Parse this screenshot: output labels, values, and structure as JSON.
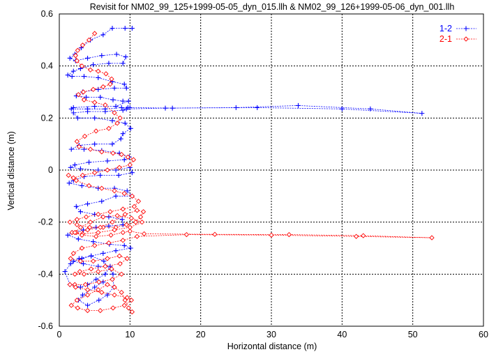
{
  "chart_data": {
    "type": "line",
    "title": "Revisit for NM02_99_125+1999-05-05_dyn_015.llh & NM02_99_126+1999-05-06_dyn_001.llh",
    "xlabel": "Horizontal distance (m)",
    "ylabel": "Vertical distance (m)",
    "xlim": [
      0,
      60
    ],
    "ylim": [
      -0.6,
      0.6
    ],
    "xticks": [
      0,
      10,
      20,
      30,
      40,
      50,
      60
    ],
    "yticks": [
      -0.6,
      -0.4,
      -0.2,
      0,
      0.2,
      0.4,
      0.6
    ],
    "xtick_labels": [
      "0",
      "10",
      "20",
      "30",
      "40",
      "50",
      "60"
    ],
    "ytick_labels": [
      "-0.6",
      "-0.4",
      "-0.2",
      "0",
      "0.2",
      "0.4",
      "0.6"
    ],
    "grid": true,
    "legend_position": "top-right",
    "series": [
      {
        "name": "1-2",
        "color": "#0000ff",
        "marker": "plus",
        "x": [
          9.3,
          10.3,
          7.5,
          6.2,
          4.4,
          3.1,
          2.2,
          1.5,
          2.3,
          4.0,
          6.0,
          8.1,
          9.4,
          9.0,
          7.0,
          4.8,
          3.0,
          2.0,
          1.2,
          1.8,
          3.5,
          5.5,
          7.5,
          9.2,
          9.5,
          7.8,
          5.5,
          3.3,
          2.4,
          3.8,
          5.8,
          7.6,
          9.0,
          9.8,
          8.0,
          5.0,
          2.0,
          1.7,
          4.0,
          6.5,
          8.8,
          9.7,
          10.0,
          16.0,
          25.0,
          33.8,
          44.0,
          51.3,
          40.0,
          28.0,
          15.0,
          9.5,
          9.0,
          6.5,
          4.0,
          2.0,
          2.6,
          5.0,
          7.5,
          9.3,
          10.1,
          9.0,
          8.7,
          7.5,
          5.0,
          2.8,
          1.7,
          3.5,
          6.0,
          8.5,
          9.9,
          9.2,
          6.8,
          4.2,
          2.2,
          1.6,
          3.0,
          5.5,
          8.0,
          10.0,
          10.3,
          8.4,
          5.8,
          3.5,
          2.0,
          1.4,
          3.2,
          5.5,
          7.8,
          9.6,
          10.3,
          8.0,
          6.0,
          4.0,
          2.4,
          3.0,
          5.0,
          7.0,
          8.9,
          9.0,
          7.0,
          5.2,
          3.4,
          1.8,
          1.2,
          2.7,
          4.8,
          7.1,
          9.2,
          10.1,
          8.0,
          6.2,
          4.5,
          3.2,
          2.0,
          3.4,
          5.5,
          7.2,
          6.5,
          5.2,
          4.0,
          3.0,
          1.5,
          0.8,
          1.6,
          2.8,
          4.5,
          6.3,
          7.6,
          7.7,
          6.8,
          5.6,
          4.0,
          2.7,
          3.3,
          5.0,
          6.2
        ],
        "y": [
          0.545,
          0.545,
          0.545,
          0.52,
          0.5,
          0.47,
          0.445,
          0.43,
          0.42,
          0.43,
          0.44,
          0.445,
          0.435,
          0.41,
          0.41,
          0.405,
          0.39,
          0.38,
          0.365,
          0.36,
          0.36,
          0.355,
          0.34,
          0.33,
          0.315,
          0.315,
          0.31,
          0.3,
          0.285,
          0.28,
          0.28,
          0.27,
          0.265,
          0.265,
          0.245,
          0.245,
          0.24,
          0.235,
          0.235,
          0.235,
          0.24,
          0.24,
          0.24,
          0.238,
          0.24,
          0.248,
          0.235,
          0.218,
          0.235,
          0.24,
          0.238,
          0.235,
          0.23,
          0.225,
          0.225,
          0.22,
          0.2,
          0.2,
          0.19,
          0.18,
          0.16,
          0.14,
          0.12,
          0.1,
          0.1,
          0.095,
          0.08,
          0.08,
          0.075,
          0.065,
          0.05,
          0.04,
          0.035,
          0.03,
          0.02,
          0.01,
          0.005,
          0.0,
          0.0,
          0.01,
          -0.01,
          -0.02,
          -0.02,
          -0.025,
          -0.04,
          -0.05,
          -0.06,
          -0.07,
          -0.07,
          -0.08,
          -0.1,
          -0.1,
          -0.12,
          -0.13,
          -0.14,
          -0.16,
          -0.17,
          -0.18,
          -0.19,
          -0.21,
          -0.215,
          -0.22,
          -0.23,
          -0.24,
          -0.25,
          -0.265,
          -0.275,
          -0.285,
          -0.29,
          -0.3,
          -0.31,
          -0.32,
          -0.33,
          -0.34,
          -0.35,
          -0.36,
          -0.37,
          -0.37,
          -0.4,
          -0.42,
          -0.44,
          -0.45,
          -0.44,
          -0.39,
          -0.36,
          -0.34,
          -0.33,
          -0.35,
          -0.4,
          -0.45,
          -0.48,
          -0.5,
          -0.52,
          -0.5,
          -0.48,
          -0.45,
          -0.43
        ]
      },
      {
        "name": "2-1",
        "color": "#ff0000",
        "marker": "diamond",
        "x": [
          5.0,
          4.2,
          3.3,
          2.6,
          2.3,
          2.5,
          3.2,
          4.4,
          5.5,
          6.6,
          7.4,
          7.2,
          6.2,
          4.8,
          3.4,
          2.7,
          3.5,
          5.0,
          6.5,
          7.8,
          8.6,
          8.2,
          7.0,
          5.2,
          3.6,
          2.5,
          2.8,
          4.4,
          6.0,
          7.6,
          8.8,
          9.7,
          10.5,
          10.0,
          8.5,
          6.8,
          5.0,
          3.3,
          2.0,
          1.3,
          2.4,
          4.2,
          6.0,
          7.8,
          9.2,
          10.3,
          11.2,
          10.6,
          9.0,
          7.2,
          5.5,
          3.8,
          2.5,
          1.5,
          2.5,
          4.3,
          6.2,
          8.0,
          9.5,
          10.8,
          11.5,
          11.9,
          11.0,
          9.3,
          7.5,
          5.8,
          4.0,
          2.4,
          1.8,
          3.3,
          5.5,
          7.8,
          10.0,
          11.7,
          10.2,
          8.2,
          6.2,
          4.4,
          3.0,
          2.2,
          3.2,
          5.2,
          7.3,
          9.0,
          10.0,
          12.0,
          22.0,
          32.5,
          43.0,
          52.7,
          42.0,
          30.0,
          18.0,
          11.0,
          9.0,
          7.0,
          5.0,
          3.2,
          2.0,
          1.6,
          3.0,
          4.8,
          6.8,
          8.5,
          9.6,
          8.6,
          6.5,
          4.5,
          2.9,
          2.2,
          3.5,
          5.5,
          7.4,
          8.8,
          7.5,
          5.6,
          3.7,
          2.2,
          1.5,
          2.3,
          4.0,
          6.0,
          7.8,
          9.6,
          10.2,
          9.2,
          7.6,
          5.8,
          4.0,
          2.6,
          1.7,
          2.5,
          4.0,
          5.5,
          6.8,
          7.8,
          8.8,
          9.3,
          9.8,
          10.3
        ],
        "y": [
          0.525,
          0.5,
          0.48,
          0.46,
          0.44,
          0.42,
          0.4,
          0.385,
          0.38,
          0.37,
          0.35,
          0.33,
          0.32,
          0.31,
          0.3,
          0.29,
          0.27,
          0.26,
          0.25,
          0.22,
          0.2,
          0.18,
          0.16,
          0.15,
          0.13,
          0.11,
          0.09,
          0.08,
          0.07,
          0.065,
          0.06,
          0.05,
          0.04,
          0.02,
          0.01,
          0.0,
          -0.01,
          -0.02,
          -0.03,
          -0.02,
          -0.04,
          -0.06,
          -0.07,
          -0.08,
          -0.09,
          -0.1,
          -0.12,
          -0.14,
          -0.15,
          -0.16,
          -0.17,
          -0.18,
          -0.19,
          -0.2,
          -0.21,
          -0.22,
          -0.22,
          -0.22,
          -0.21,
          -0.2,
          -0.18,
          -0.16,
          -0.155,
          -0.17,
          -0.2,
          -0.22,
          -0.23,
          -0.24,
          -0.24,
          -0.245,
          -0.24,
          -0.23,
          -0.22,
          -0.2,
          -0.185,
          -0.175,
          -0.18,
          -0.2,
          -0.22,
          -0.24,
          -0.25,
          -0.255,
          -0.25,
          -0.24,
          -0.235,
          -0.245,
          -0.247,
          -0.248,
          -0.252,
          -0.26,
          -0.255,
          -0.25,
          -0.248,
          -0.255,
          -0.27,
          -0.28,
          -0.29,
          -0.3,
          -0.32,
          -0.34,
          -0.35,
          -0.35,
          -0.34,
          -0.33,
          -0.34,
          -0.36,
          -0.37,
          -0.38,
          -0.39,
          -0.4,
          -0.4,
          -0.39,
          -0.38,
          -0.4,
          -0.42,
          -0.43,
          -0.44,
          -0.44,
          -0.44,
          -0.45,
          -0.46,
          -0.47,
          -0.48,
          -0.49,
          -0.5,
          -0.52,
          -0.53,
          -0.54,
          -0.54,
          -0.53,
          -0.52,
          -0.5,
          -0.48,
          -0.46,
          -0.44,
          -0.45,
          -0.47,
          -0.5,
          -0.53,
          -0.545
        ]
      }
    ]
  }
}
